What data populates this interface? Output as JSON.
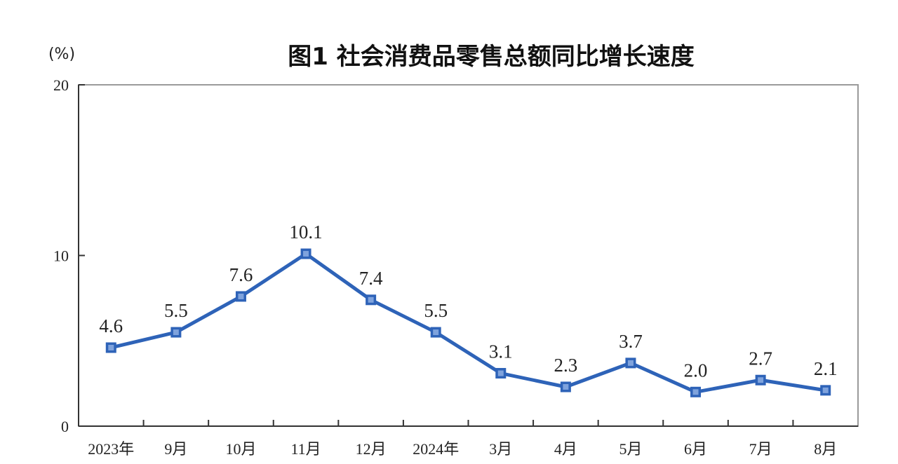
{
  "chart_data": {
    "type": "line",
    "title": "图1  社会消费品零售总额同比增长速度",
    "unit_label": "(%)",
    "categories": [
      "2023年",
      "9月",
      "10月",
      "11月",
      "12月",
      "2024年",
      "3月",
      "4月",
      "5月",
      "6月",
      "7月",
      "8月"
    ],
    "series": [
      {
        "values": [
          4.6,
          5.5,
          7.6,
          10.1,
          7.4,
          5.5,
          3.1,
          2.3,
          3.7,
          2.0,
          2.7,
          2.1
        ],
        "data_labels": [
          "4.6",
          "5.5",
          "7.6",
          "10.1",
          "7.4",
          "5.5",
          "3.1",
          "2.3",
          "3.7",
          "2.0",
          "2.7",
          "2.1"
        ]
      }
    ],
    "ylim": [
      0,
      20
    ],
    "yticks": [
      0,
      10,
      20
    ],
    "ytick_labels": [
      "0",
      "10",
      "20"
    ],
    "grid": false,
    "legend": "none",
    "colors": {
      "series": "#2E63B8",
      "marker": "#2E63B8",
      "marker_highlight": "#7FA3DD"
    }
  }
}
